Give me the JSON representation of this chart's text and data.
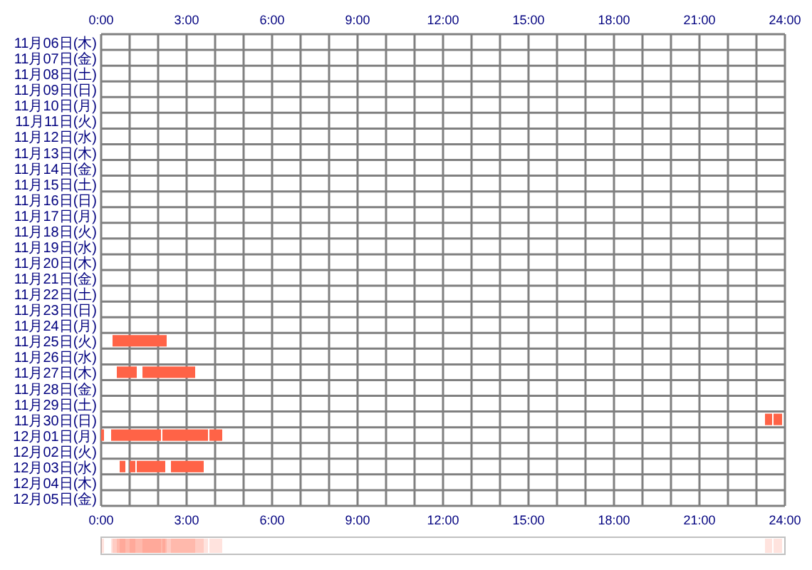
{
  "chart_data": {
    "type": "bar",
    "orientation": "horizontal",
    "categories": [
      "11月06日(木)",
      "11月07日(金)",
      "11月08日(土)",
      "11月09日(日)",
      "11月10日(月)",
      "11月11日(火)",
      "11月12日(水)",
      "11月13日(木)",
      "11月14日(金)",
      "11月15日(土)",
      "11月16日(日)",
      "11月17日(月)",
      "11月18日(火)",
      "11月19日(水)",
      "11月20日(木)",
      "11月21日(金)",
      "11月22日(土)",
      "11月23日(日)",
      "11月24日(月)",
      "11月25日(火)",
      "11月26日(水)",
      "11月27日(木)",
      "11月28日(金)",
      "11月29日(土)",
      "11月30日(日)",
      "12月01日(月)",
      "12月02日(火)",
      "12月03日(水)",
      "12月04日(木)",
      "12月05日(金)"
    ],
    "series": [
      {
        "color": "#ff6347",
        "base": [
          null,
          null,
          null,
          null,
          null,
          null,
          null,
          null,
          null,
          null,
          null,
          null,
          null,
          null,
          null,
          null,
          null,
          null,
          null,
          0.4,
          null,
          0.55,
          null,
          null,
          23.3,
          0,
          null,
          0.65,
          null,
          null
        ],
        "values": [
          null,
          null,
          null,
          null,
          null,
          null,
          null,
          null,
          null,
          null,
          null,
          null,
          null,
          null,
          null,
          null,
          null,
          null,
          null,
          1.9,
          null,
          0.7,
          null,
          null,
          0.25,
          0.1,
          null,
          0.2,
          null,
          null
        ]
      },
      {
        "color": "#ff6347",
        "base": [
          null,
          null,
          null,
          null,
          null,
          null,
          null,
          null,
          null,
          null,
          null,
          null,
          null,
          null,
          null,
          null,
          null,
          null,
          null,
          null,
          null,
          1.45,
          null,
          null,
          23.6,
          0.35,
          null,
          1.0,
          null,
          null
        ],
        "values": [
          null,
          null,
          null,
          null,
          null,
          null,
          null,
          null,
          null,
          null,
          null,
          null,
          null,
          null,
          null,
          null,
          null,
          null,
          null,
          null,
          null,
          1.85,
          null,
          null,
          0.3,
          1.6,
          null,
          0.2,
          null,
          null
        ]
      },
      {
        "color": "#ff6347",
        "base": [
          null,
          null,
          null,
          null,
          null,
          null,
          null,
          null,
          null,
          null,
          null,
          null,
          null,
          null,
          null,
          null,
          null,
          null,
          null,
          null,
          null,
          null,
          null,
          null,
          null,
          1.95,
          null,
          1.25,
          null,
          null
        ],
        "values": [
          null,
          null,
          null,
          null,
          null,
          null,
          null,
          null,
          null,
          null,
          null,
          null,
          null,
          null,
          null,
          null,
          null,
          null,
          null,
          null,
          null,
          null,
          null,
          null,
          null,
          0.15,
          null,
          1.0,
          null,
          null
        ]
      },
      {
        "color": "#ff6347",
        "base": [
          null,
          null,
          null,
          null,
          null,
          null,
          null,
          null,
          null,
          null,
          null,
          null,
          null,
          null,
          null,
          null,
          null,
          null,
          null,
          null,
          null,
          null,
          null,
          null,
          null,
          2.15,
          null,
          2.45,
          null,
          null
        ],
        "values": [
          null,
          null,
          null,
          null,
          null,
          null,
          null,
          null,
          null,
          null,
          null,
          null,
          null,
          null,
          null,
          null,
          null,
          null,
          null,
          null,
          null,
          null,
          null,
          null,
          null,
          1.6,
          null,
          1.15,
          null,
          null
        ]
      },
      {
        "color": "#ff6347",
        "base": [
          null,
          null,
          null,
          null,
          null,
          null,
          null,
          null,
          null,
          null,
          null,
          null,
          null,
          null,
          null,
          null,
          null,
          null,
          null,
          null,
          null,
          null,
          null,
          null,
          null,
          3.8,
          null,
          null,
          null,
          null
        ],
        "values": [
          null,
          null,
          null,
          null,
          null,
          null,
          null,
          null,
          null,
          null,
          null,
          null,
          null,
          null,
          null,
          null,
          null,
          null,
          null,
          null,
          null,
          null,
          null,
          null,
          null,
          0.45,
          null,
          null,
          null,
          null
        ]
      }
    ],
    "xlim": [
      0,
      24
    ],
    "xticks": [
      {
        "value": 0,
        "label": "0:00"
      },
      {
        "value": 1,
        "label": null
      },
      {
        "value": 2,
        "label": null
      },
      {
        "value": 3,
        "label": "3:00"
      },
      {
        "value": 4,
        "label": null
      },
      {
        "value": 5,
        "label": null
      },
      {
        "value": 6,
        "label": "6:00"
      },
      {
        "value": 7,
        "label": null
      },
      {
        "value": 8,
        "label": null
      },
      {
        "value": 9,
        "label": "9:00"
      },
      {
        "value": 10,
        "label": null
      },
      {
        "value": 11,
        "label": null
      },
      {
        "value": 12,
        "label": "12:00"
      },
      {
        "value": 13,
        "label": null
      },
      {
        "value": 14,
        "label": null
      },
      {
        "value": 15,
        "label": "15:00"
      },
      {
        "value": 16,
        "label": null
      },
      {
        "value": 17,
        "label": null
      },
      {
        "value": 18,
        "label": "18:00"
      },
      {
        "value": 19,
        "label": null
      },
      {
        "value": 20,
        "label": null
      },
      {
        "value": 21,
        "label": "21:00"
      },
      {
        "value": 22,
        "label": null
      },
      {
        "value": 23,
        "label": null
      },
      {
        "value": 24,
        "label": "24:00"
      }
    ],
    "x2lim": [
      0,
      24
    ],
    "x2ticks": [
      {
        "value": 0,
        "label": "0:00"
      },
      {
        "value": 1,
        "label": null
      },
      {
        "value": 2,
        "label": null
      },
      {
        "value": 3,
        "label": "3:00"
      },
      {
        "value": 4,
        "label": null
      },
      {
        "value": 5,
        "label": null
      },
      {
        "value": 6,
        "label": "6:00"
      },
      {
        "value": 7,
        "label": null
      },
      {
        "value": 8,
        "label": null
      },
      {
        "value": 9,
        "label": "9:00"
      },
      {
        "value": 10,
        "label": null
      },
      {
        "value": 11,
        "label": null
      },
      {
        "value": 12,
        "label": "12:00"
      },
      {
        "value": 13,
        "label": null
      },
      {
        "value": 14,
        "label": null
      },
      {
        "value": 15,
        "label": "15:00"
      },
      {
        "value": 16,
        "label": null
      },
      {
        "value": 17,
        "label": null
      },
      {
        "value": 18,
        "label": "18:00"
      },
      {
        "value": 19,
        "label": null
      },
      {
        "value": 20,
        "label": null
      },
      {
        "value": 21,
        "label": "21:00"
      },
      {
        "value": 22,
        "label": null
      },
      {
        "value": 23,
        "label": null
      },
      {
        "value": 24,
        "label": "24:00"
      }
    ],
    "grid": true
  }
}
